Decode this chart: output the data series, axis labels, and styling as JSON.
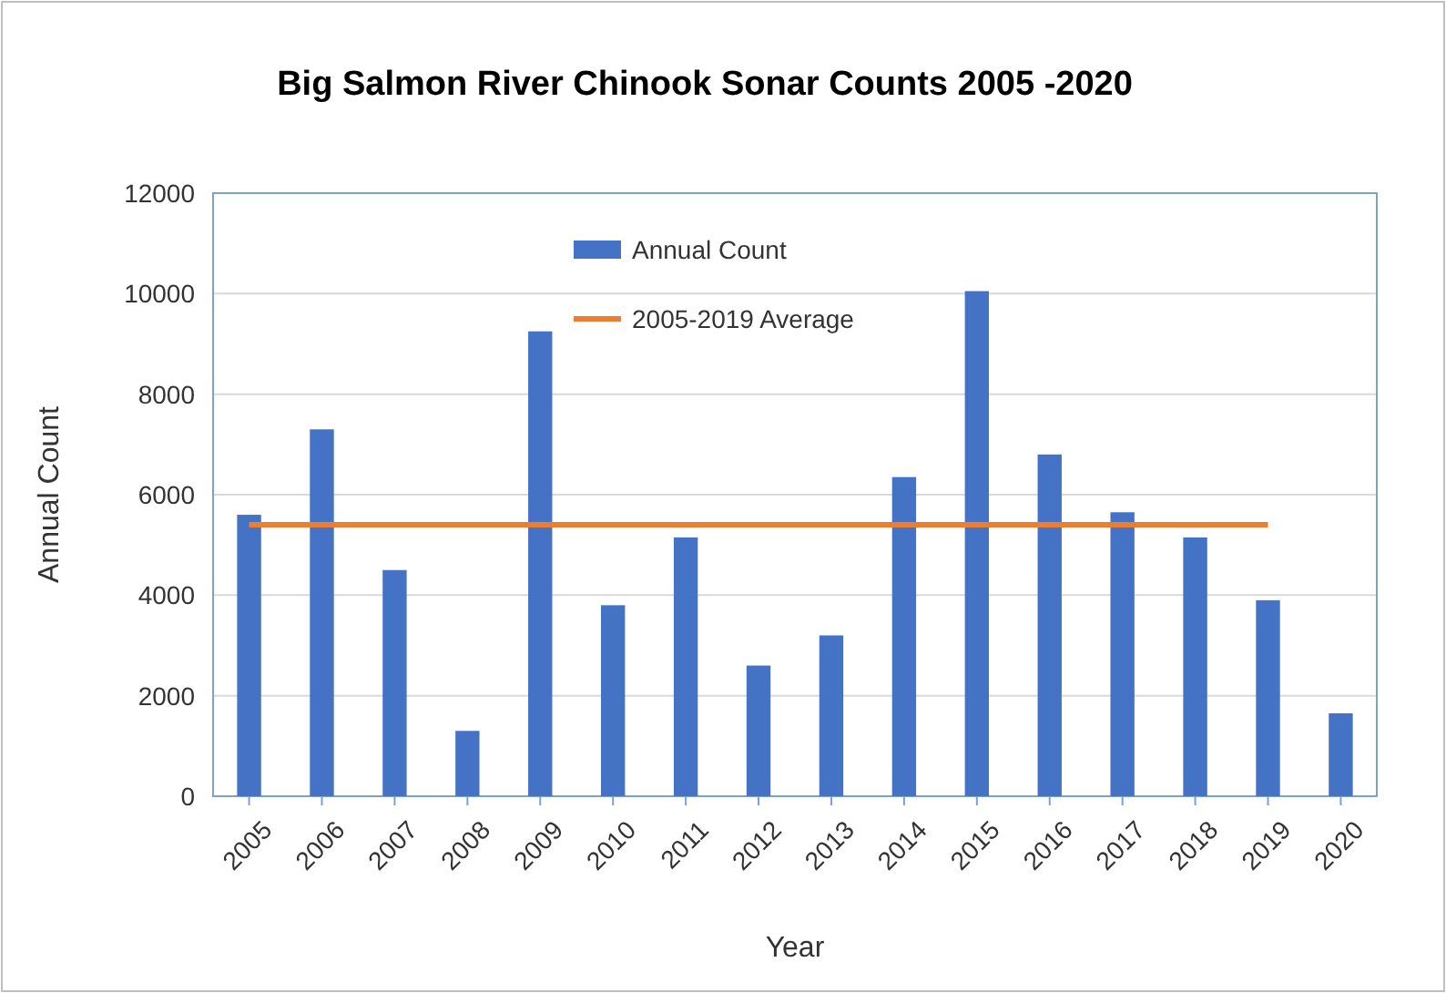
{
  "chart_data": {
    "type": "bar",
    "title": "Big Salmon River Chinook Sonar Counts 2005 -2020",
    "xlabel": "Year",
    "ylabel": "Annual Count",
    "categories": [
      "2005",
      "2006",
      "2007",
      "2008",
      "2009",
      "2010",
      "2011",
      "2012",
      "2013",
      "2014",
      "2015",
      "2016",
      "2017",
      "2018",
      "2019",
      "2020"
    ],
    "series": [
      {
        "name": "Annual Count",
        "color": "#4472c4",
        "values": [
          5600,
          7300,
          4500,
          1300,
          9250,
          3800,
          5150,
          2600,
          3200,
          6350,
          10050,
          6800,
          5650,
          5150,
          3900,
          1650
        ]
      },
      {
        "name": "2005-2019 Average",
        "type": "line",
        "color": "#ed7d31",
        "values": [
          5400,
          5400,
          5400,
          5400,
          5400,
          5400,
          5400,
          5400,
          5400,
          5400,
          5400,
          5400,
          5400,
          5400,
          5400,
          null
        ]
      }
    ],
    "ylim": [
      0,
      12000
    ],
    "yticks": [
      0,
      2000,
      4000,
      6000,
      8000,
      10000,
      12000
    ],
    "grid": "y",
    "legend": "top"
  }
}
